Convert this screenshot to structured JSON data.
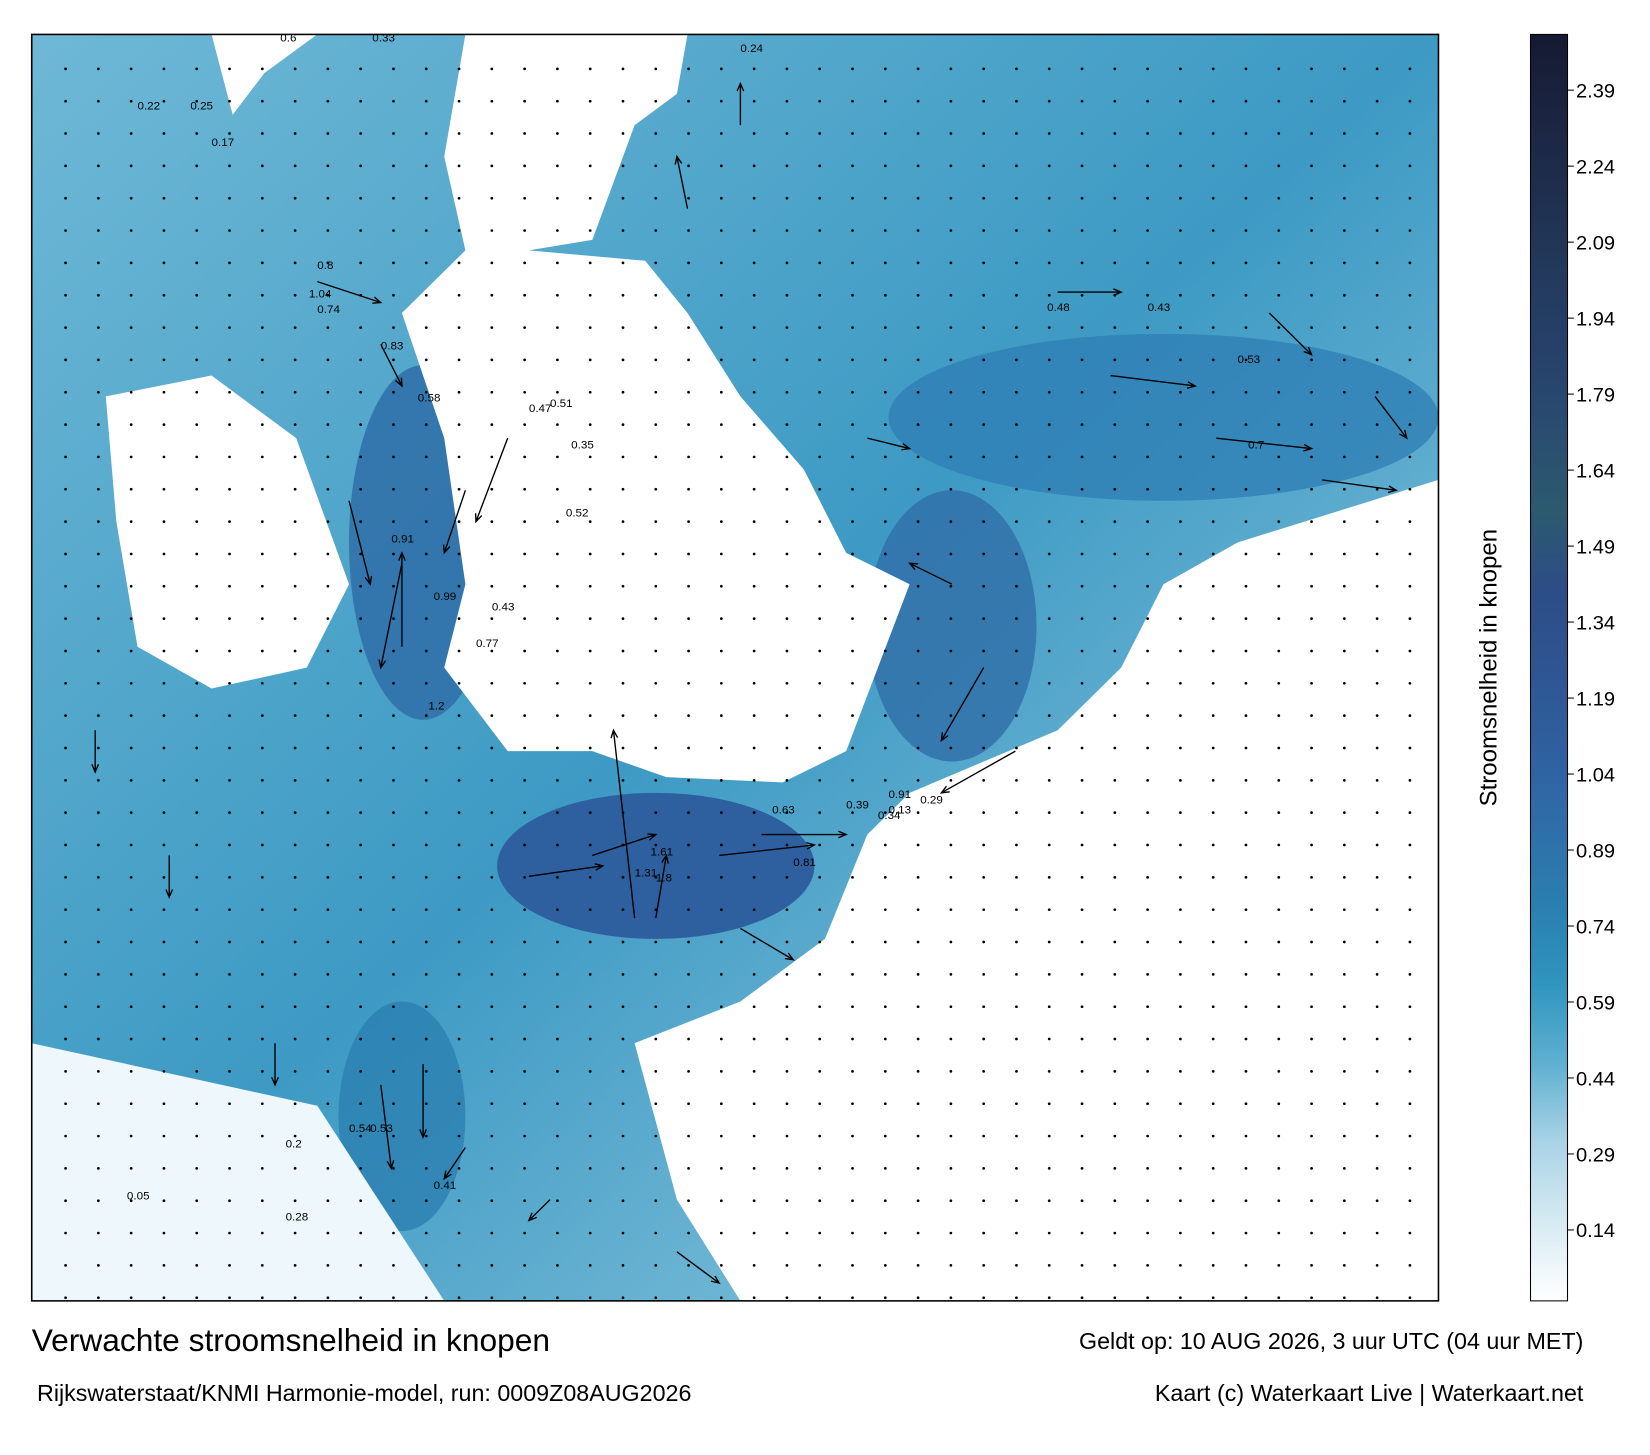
{
  "map": {
    "title": "Verwachte stroomsnelheid in knopen",
    "valid_time": "Geldt op: 10 AUG 2026, 3 uur UTC (04 uur MET)",
    "source": "Rijkswaterstaat/KNMI Harmonie-model, run: 0009Z08AUG2026",
    "credit": "Kaart (c) Waterkaart Live | Waterkaart.net",
    "colorbar": {
      "label": "Stroomsnelheid in knopen",
      "lim": [
        0,
        2.5
      ],
      "ticks": [
        0.14,
        0.29,
        0.44,
        0.59,
        0.74,
        0.89,
        1.04,
        1.19,
        1.34,
        1.49,
        1.64,
        1.79,
        1.94,
        2.09,
        2.24,
        2.39
      ],
      "colors": [
        "#ffffff",
        "#d6eaf2",
        "#a9d3e6",
        "#5fb0d0",
        "#2f95bf",
        "#2a7fb0",
        "#2f6ea8",
        "#2f5f9e",
        "#2e5592",
        "#2c4d86",
        "#2b5a6e",
        "#2a4d70",
        "#26406a",
        "#233a5c",
        "#1e2f4d",
        "#1b2440",
        "#161a33"
      ]
    },
    "current_labels": [
      "0.6",
      "0.33",
      "0.22",
      "0.25",
      "0.17",
      "0.8",
      "1.04",
      "0.74",
      "0.83",
      "0.58",
      "0.91",
      "0.99",
      "1.2",
      "0.77",
      "0.43",
      "0.51",
      "0.52",
      "0.47",
      "0.35",
      "0.24",
      "0.48",
      "0.43",
      "0.53",
      "0.7",
      "0.91",
      "1.31",
      "1.61",
      "1.8",
      "0.81",
      "0.63",
      "0.39",
      "0.34",
      "0.54",
      "0.53",
      "0.41",
      "0.28",
      "0.05",
      "0.2",
      "0.13",
      "0.29"
    ]
  }
}
